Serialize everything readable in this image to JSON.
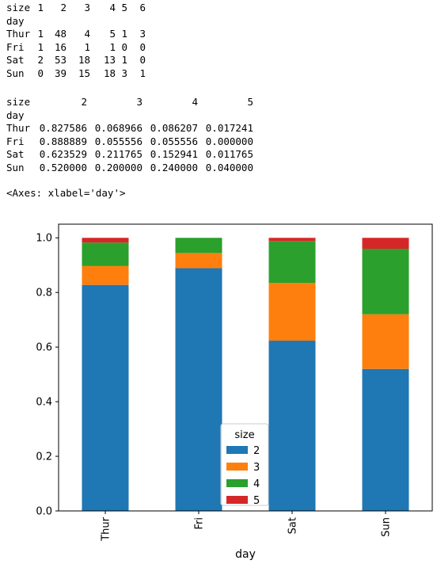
{
  "table_counts": {
    "columns_name": "size",
    "columns": [
      "1",
      "2",
      "3",
      "4",
      "5",
      "6"
    ],
    "index_name": "day",
    "rows": [
      {
        "day": "Thur",
        "values": [
          "1",
          "48",
          "4",
          "5",
          "1",
          "3"
        ]
      },
      {
        "day": "Fri",
        "values": [
          "1",
          "16",
          "1",
          "1",
          "0",
          "0"
        ]
      },
      {
        "day": "Sat",
        "values": [
          "2",
          "53",
          "18",
          "13",
          "1",
          "0"
        ]
      },
      {
        "day": "Sun",
        "values": [
          "0",
          "39",
          "15",
          "18",
          "3",
          "1"
        ]
      }
    ]
  },
  "table_pcts": {
    "columns_name": "size",
    "columns": [
      "2",
      "3",
      "4",
      "5"
    ],
    "index_name": "day",
    "rows": [
      {
        "day": "Thur",
        "values": [
          "0.827586",
          "0.068966",
          "0.086207",
          "0.017241"
        ]
      },
      {
        "day": "Fri",
        "values": [
          "0.888889",
          "0.055556",
          "0.055556",
          "0.000000"
        ]
      },
      {
        "day": "Sat",
        "values": [
          "0.623529",
          "0.211765",
          "0.152941",
          "0.011765"
        ]
      },
      {
        "day": "Sun",
        "values": [
          "0.520000",
          "0.200000",
          "0.240000",
          "0.040000"
        ]
      }
    ]
  },
  "axes_repr": "<Axes: xlabel='day'>",
  "chart_data": {
    "type": "bar",
    "stacked": true,
    "categories": [
      "Thur",
      "Fri",
      "Sat",
      "Sun"
    ],
    "series": [
      {
        "name": "2",
        "color": "#1f77b4",
        "values": [
          0.827586,
          0.888889,
          0.623529,
          0.52
        ]
      },
      {
        "name": "3",
        "color": "#ff7f0e",
        "values": [
          0.068966,
          0.055556,
          0.211765,
          0.2
        ]
      },
      {
        "name": "4",
        "color": "#2ca02c",
        "values": [
          0.086207,
          0.055556,
          0.152941,
          0.24
        ]
      },
      {
        "name": "5",
        "color": "#d62728",
        "values": [
          0.017241,
          0.0,
          0.011765,
          0.04
        ]
      }
    ],
    "xlabel": "day",
    "ylabel": "",
    "ylim": [
      0,
      1.05
    ],
    "yticks": [
      0.0,
      0.2,
      0.4,
      0.6,
      0.8,
      1.0
    ],
    "ytick_labels": [
      "0.0",
      "0.2",
      "0.4",
      "0.6",
      "0.8",
      "1.0"
    ],
    "legend": {
      "title": "size",
      "placement": "lower center"
    },
    "grid": false
  }
}
